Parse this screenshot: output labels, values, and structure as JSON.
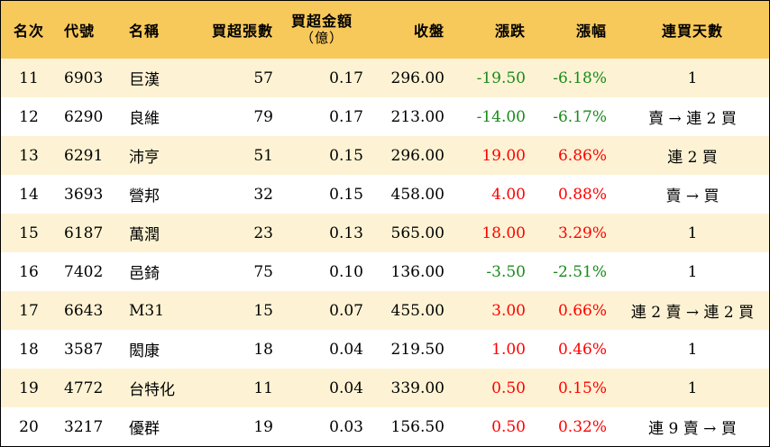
{
  "headers": {
    "rank": "名次",
    "code": "代號",
    "name": "名稱",
    "net_buy_lots": "買超張數",
    "net_buy_amount": "買超金額",
    "net_buy_amount_unit": "（億）",
    "close": "收盤",
    "change": "漲跌",
    "change_pct": "漲幅",
    "streak": "連買天數"
  },
  "colors": {
    "header_bg": "#f7c85a",
    "stripe_bg": "#fdf3d4",
    "up": "#ff0000",
    "down": "#1a8a1a"
  },
  "rows": [
    {
      "rank": "11",
      "code": "6903",
      "name": "巨漢",
      "lots": "57",
      "amount": "0.17",
      "close": "296.00",
      "change": "-19.50",
      "pct": "-6.18%",
      "dir": "down",
      "streak": "1"
    },
    {
      "rank": "12",
      "code": "6290",
      "name": "良維",
      "lots": "79",
      "amount": "0.17",
      "close": "213.00",
      "change": "-14.00",
      "pct": "-6.17%",
      "dir": "down",
      "streak": "賣 → 連 2 買"
    },
    {
      "rank": "13",
      "code": "6291",
      "name": "沛亨",
      "lots": "51",
      "amount": "0.15",
      "close": "296.00",
      "change": "19.00",
      "pct": "6.86%",
      "dir": "up",
      "streak": "連 2 買"
    },
    {
      "rank": "14",
      "code": "3693",
      "name": "營邦",
      "lots": "32",
      "amount": "0.15",
      "close": "458.00",
      "change": "4.00",
      "pct": "0.88%",
      "dir": "up",
      "streak": "賣 → 買"
    },
    {
      "rank": "15",
      "code": "6187",
      "name": "萬潤",
      "lots": "23",
      "amount": "0.13",
      "close": "565.00",
      "change": "18.00",
      "pct": "3.29%",
      "dir": "up",
      "streak": "1"
    },
    {
      "rank": "16",
      "code": "7402",
      "name": "邑錡",
      "lots": "75",
      "amount": "0.10",
      "close": "136.00",
      "change": "-3.50",
      "pct": "-2.51%",
      "dir": "down",
      "streak": "1"
    },
    {
      "rank": "17",
      "code": "6643",
      "name": "M31",
      "lots": "15",
      "amount": "0.07",
      "close": "455.00",
      "change": "3.00",
      "pct": "0.66%",
      "dir": "up",
      "streak": "連 2 賣 → 連 2 買"
    },
    {
      "rank": "18",
      "code": "3587",
      "name": "閎康",
      "lots": "18",
      "amount": "0.04",
      "close": "219.50",
      "change": "1.00",
      "pct": "0.46%",
      "dir": "up",
      "streak": "1"
    },
    {
      "rank": "19",
      "code": "4772",
      "name": "台特化",
      "lots": "11",
      "amount": "0.04",
      "close": "339.00",
      "change": "0.50",
      "pct": "0.15%",
      "dir": "up",
      "streak": "1"
    },
    {
      "rank": "20",
      "code": "3217",
      "name": "優群",
      "lots": "19",
      "amount": "0.03",
      "close": "156.50",
      "change": "0.50",
      "pct": "0.32%",
      "dir": "up",
      "streak": "連 9 賣 → 買"
    }
  ]
}
